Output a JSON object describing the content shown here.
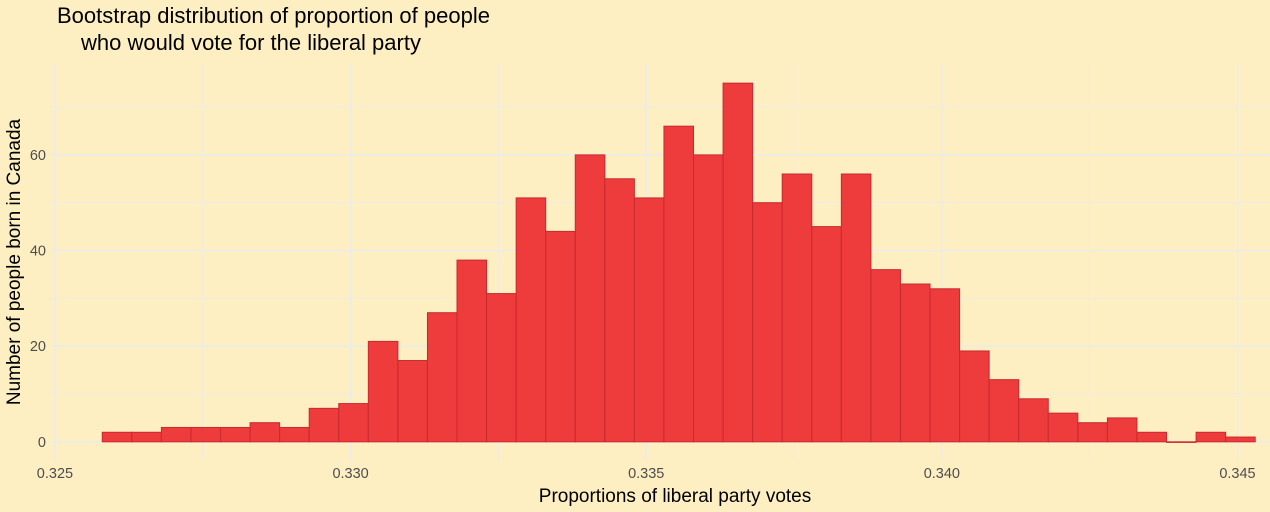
{
  "chart_data": {
    "type": "bar",
    "title_lines": [
      "Bootstrap distribution of proportion of people",
      "who would vote for the liberal party"
    ],
    "xlabel": "Proportions of liberal party votes",
    "ylabel": "Number of people born in Canada",
    "xlim": [
      0.32495,
      0.34555
    ],
    "ylim": [
      -3.8,
      79
    ],
    "x_ticks": [
      0.325,
      0.33,
      0.335,
      0.34,
      0.345
    ],
    "x_tick_labels": [
      "0.325",
      "0.330",
      "0.335",
      "0.340",
      "0.345"
    ],
    "y_ticks": [
      0,
      20,
      40,
      60
    ],
    "y_tick_labels": [
      "0",
      "20",
      "40",
      "60"
    ],
    "bin_start": 0.3258,
    "bin_width": 0.0005,
    "counts": [
      2,
      2,
      3,
      3,
      3,
      4,
      3,
      7,
      8,
      21,
      17,
      27,
      38,
      31,
      51,
      44,
      60,
      55,
      51,
      66,
      60,
      75,
      50,
      56,
      45,
      56,
      36,
      33,
      32,
      19,
      13,
      9,
      6,
      4,
      5,
      2,
      0,
      2,
      1
    ],
    "bar_color": "#EE3B3B",
    "bar_edge_color": "#C82A2E",
    "grid": true,
    "legend": "none"
  }
}
